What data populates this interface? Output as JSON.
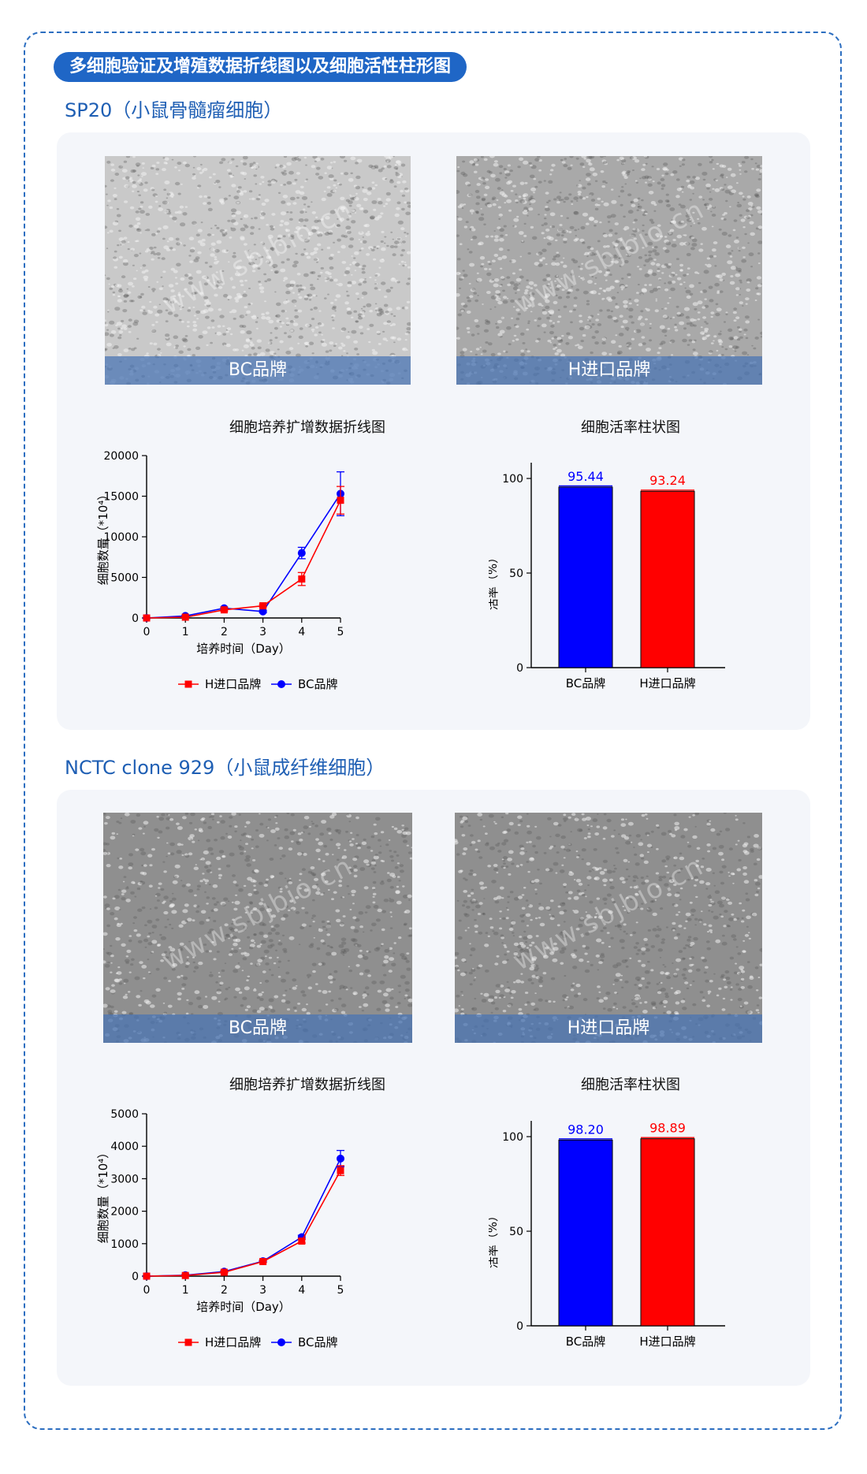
{
  "banner": "多细胞验证及增殖数据折线图以及细胞活性柱形图",
  "sections": [
    {
      "title": "SP20（小鼠骨髓瘤细胞）",
      "photos": [
        {
          "caption": "BC品牌",
          "watermark": "www.sbjbio.cn"
        },
        {
          "caption": "H进口品牌",
          "watermark": "www.sbjbio.cn"
        }
      ]
    },
    {
      "title": "NCTC clone 929（小鼠成纤维细胞）",
      "photos": [
        {
          "caption": "BC品牌",
          "watermark": "www.sbjbio.cn"
        },
        {
          "caption": "H进口品牌",
          "watermark": "www.sbjbio.cn"
        }
      ]
    }
  ],
  "colors": {
    "accent": "#1f66c6",
    "bc_series": "#0000ff",
    "h_series": "#ff0000",
    "panel_bg": "#f4f6fa"
  },
  "chart_data": [
    {
      "type": "line",
      "title": "细胞培养扩增数据折线图",
      "xlabel": "培养时间（Day）",
      "ylabel": "细胞数量（*10⁴）",
      "x": [
        0,
        1,
        2,
        3,
        4,
        5
      ],
      "xlim": [
        0,
        5
      ],
      "ylim": [
        0,
        20000
      ],
      "yticks": [
        0,
        5000,
        10000,
        15000,
        20000
      ],
      "legend_position": "bottom",
      "series": [
        {
          "name": "H进口品牌",
          "values": [
            0,
            100,
            1000,
            1500,
            4800,
            14500
          ],
          "err": [
            0,
            50,
            150,
            150,
            800,
            1700
          ],
          "marker": "square"
        },
        {
          "name": "BC品牌",
          "values": [
            0,
            250,
            1200,
            800,
            8000,
            15300
          ],
          "err": [
            0,
            80,
            150,
            150,
            700,
            2700
          ],
          "marker": "circle"
        }
      ]
    },
    {
      "type": "bar",
      "title": "细胞活率柱状图",
      "ylabel": "活率（%）",
      "categories": [
        "BC品牌",
        "H进口品牌"
      ],
      "values": [
        95.44,
        93.24
      ],
      "value_labels": [
        "95.44",
        "93.24"
      ],
      "ylim": [
        0,
        100
      ],
      "yticks": [
        0,
        50,
        100
      ]
    },
    {
      "type": "line",
      "title": "细胞培养扩增数据折线图",
      "xlabel": "培养时间（Day）",
      "ylabel": "细胞数量（*10⁴）",
      "x": [
        0,
        1,
        2,
        3,
        4,
        5
      ],
      "xlim": [
        0,
        5
      ],
      "ylim": [
        0,
        5000
      ],
      "yticks": [
        0,
        1000,
        2000,
        3000,
        4000,
        5000
      ],
      "legend_position": "bottom",
      "series": [
        {
          "name": "H进口品牌",
          "values": [
            0,
            20,
            120,
            450,
            1080,
            3250
          ],
          "err": [
            0,
            10,
            20,
            30,
            60,
            150
          ],
          "marker": "square"
        },
        {
          "name": "BC品牌",
          "values": [
            0,
            30,
            140,
            460,
            1200,
            3620
          ],
          "err": [
            0,
            10,
            20,
            30,
            60,
            250
          ],
          "marker": "circle"
        }
      ]
    },
    {
      "type": "bar",
      "title": "细胞活率柱状图",
      "ylabel": "活率（%）",
      "categories": [
        "BC品牌",
        "H进口品牌"
      ],
      "values": [
        98.2,
        98.89
      ],
      "value_labels": [
        "98.20",
        "98.89"
      ],
      "ylim": [
        0,
        100
      ],
      "yticks": [
        0,
        50,
        100
      ]
    }
  ]
}
